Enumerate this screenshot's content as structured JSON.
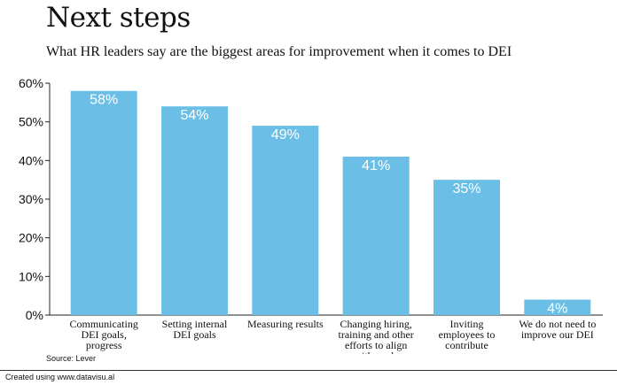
{
  "title": "Next steps",
  "subtitle": "What HR leaders say are the biggest areas for improvement when it comes to DEI",
  "source": "Source: Lever",
  "credit": "Created using www.datavisu.al",
  "colors": {
    "bar": "#6bbfe6",
    "axis": "#222222",
    "label": "#ffffff"
  },
  "chart_data": {
    "type": "bar",
    "title": "Next steps",
    "subtitle": "What HR leaders say are the biggest areas for improvement when it comes to DEI",
    "categories": [
      "Communicating DEI goals, progress",
      "Setting internal DEI goals",
      "Measuring results",
      "Changing hiring, training and other efforts to align with goals",
      "Inviting employees to contribute",
      "We do not need to improve our DEI"
    ],
    "category_lines": [
      [
        "Communicating",
        "DEI goals,",
        "progress"
      ],
      [
        "Setting internal",
        "DEI goals"
      ],
      [
        "Measuring results"
      ],
      [
        "Changing hiring,",
        "training and other",
        "efforts to align",
        "with goals"
      ],
      [
        "Inviting",
        "employees to",
        "contribute"
      ],
      [
        "We do not need to",
        "improve our DEI"
      ]
    ],
    "values": [
      58,
      54,
      49,
      41,
      35,
      4
    ],
    "value_labels": [
      "58%",
      "54%",
      "49%",
      "41%",
      "35%",
      "4%"
    ],
    "ylim": [
      0,
      60
    ],
    "yticks": [
      0,
      10,
      20,
      30,
      40,
      50,
      60
    ],
    "ytick_labels": [
      "0%",
      "10%",
      "20%",
      "30%",
      "40%",
      "50%",
      "60%"
    ],
    "xlabel": "",
    "ylabel": "",
    "grid": false
  }
}
